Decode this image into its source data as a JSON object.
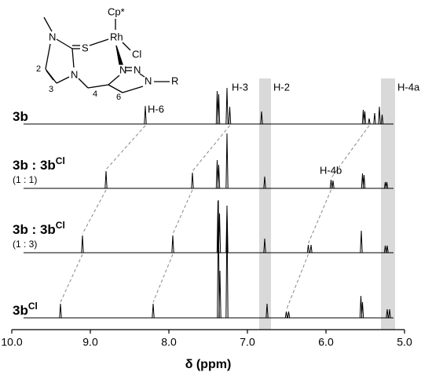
{
  "chart_data": {
    "type": "nmr-stack",
    "x_label": "δ (ppm)",
    "xlim": [
      10.0,
      5.0
    ],
    "xticks": [
      {
        "value": 10.0,
        "label": "10.0"
      },
      {
        "value": 9.0,
        "label": "9.0"
      },
      {
        "value": 8.0,
        "label": "8.0"
      },
      {
        "value": 7.0,
        "label": "7.0"
      },
      {
        "value": 6.0,
        "label": "6.0"
      },
      {
        "value": 5.0,
        "label": "5.0"
      }
    ],
    "color": "#000000",
    "highlight_color": "#d9d9d9",
    "highlights": [
      {
        "label": "H-2",
        "from": 6.85,
        "to": 6.7
      },
      {
        "label": "H-4a",
        "from": 5.3,
        "to": 5.12
      }
    ],
    "annotations": [
      {
        "text": "H-6",
        "x": 8.27
      },
      {
        "text": "H-3",
        "x": 7.2
      },
      {
        "text": "H-4b",
        "x": 6.08
      }
    ],
    "spectra": [
      {
        "label": "3b",
        "peaks": [
          {
            "ppm": 8.3,
            "height": 23
          },
          {
            "ppm": 7.385,
            "height": 42
          },
          {
            "ppm": 7.365,
            "height": 38
          },
          {
            "ppm": 7.26,
            "height": 46
          },
          {
            "ppm": 7.225,
            "height": 22
          },
          {
            "ppm": 6.82,
            "height": 16
          },
          {
            "ppm": 5.525,
            "height": 18
          },
          {
            "ppm": 5.505,
            "height": 16
          },
          {
            "ppm": 5.45,
            "height": 7
          },
          {
            "ppm": 5.38,
            "height": 14
          },
          {
            "ppm": 5.32,
            "height": 22
          },
          {
            "ppm": 5.285,
            "height": 12
          }
        ]
      },
      {
        "label": "3b : 3b",
        "label_sup": "Cl",
        "ratio": "(1 : 1)",
        "peaks": [
          {
            "ppm": 8.8,
            "height": 22
          },
          {
            "ppm": 7.7,
            "height": 20
          },
          {
            "ppm": 7.385,
            "height": 36
          },
          {
            "ppm": 7.365,
            "height": 30
          },
          {
            "ppm": 7.26,
            "height": 70
          },
          {
            "ppm": 6.78,
            "height": 15
          },
          {
            "ppm": 5.935,
            "height": 11
          },
          {
            "ppm": 5.91,
            "height": 10
          },
          {
            "ppm": 5.535,
            "height": 19
          },
          {
            "ppm": 5.515,
            "height": 17
          },
          {
            "ppm": 5.245,
            "height": 8
          },
          {
            "ppm": 5.225,
            "height": 8
          }
        ]
      },
      {
        "label": "3b : 3b",
        "label_sup": "Cl",
        "ratio": "(1 : 3)",
        "peaks": [
          {
            "ppm": 9.1,
            "height": 22
          },
          {
            "ppm": 7.95,
            "height": 22
          },
          {
            "ppm": 7.375,
            "height": 66
          },
          {
            "ppm": 7.355,
            "height": 50
          },
          {
            "ppm": 7.26,
            "height": 60
          },
          {
            "ppm": 6.78,
            "height": 18
          },
          {
            "ppm": 6.225,
            "height": 10
          },
          {
            "ppm": 6.19,
            "height": 10
          },
          {
            "ppm": 5.55,
            "height": 28
          },
          {
            "ppm": 5.245,
            "height": 9
          },
          {
            "ppm": 5.22,
            "height": 9
          }
        ]
      },
      {
        "label": "3b",
        "label_sup": "Cl",
        "peaks": [
          {
            "ppm": 9.38,
            "height": 18
          },
          {
            "ppm": 8.2,
            "height": 18
          },
          {
            "ppm": 7.37,
            "height": 150
          },
          {
            "ppm": 7.35,
            "height": 60
          },
          {
            "ppm": 7.26,
            "height": 132
          },
          {
            "ppm": 6.75,
            "height": 18
          },
          {
            "ppm": 6.505,
            "height": 8
          },
          {
            "ppm": 6.475,
            "height": 8
          },
          {
            "ppm": 5.555,
            "height": 28
          },
          {
            "ppm": 5.535,
            "height": 20
          },
          {
            "ppm": 5.22,
            "height": 11
          },
          {
            "ppm": 5.19,
            "height": 11
          }
        ]
      }
    ]
  },
  "structure": {
    "labels": [
      "Cp*",
      "Rh",
      "Cl",
      "S",
      "N",
      "N",
      "N",
      "N",
      "N",
      "R",
      "2",
      "3",
      "4",
      "6"
    ]
  }
}
